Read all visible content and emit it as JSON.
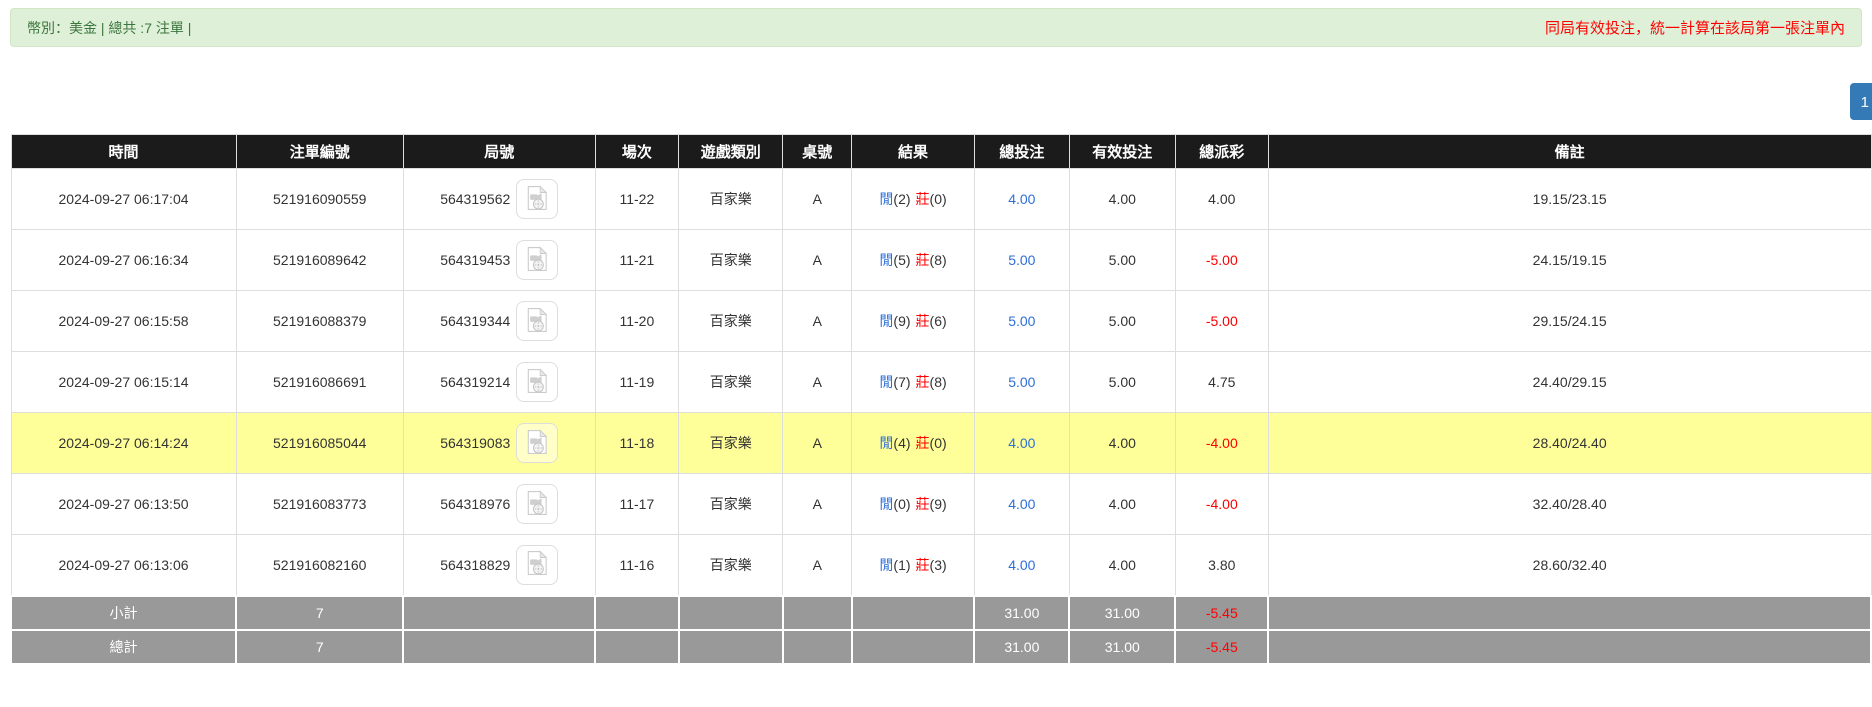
{
  "header_bar": {
    "left_text": "幣別：美金 | 總共 :7 注單 |",
    "right_text": "同局有效投注，統一計算在該局第一張注單內"
  },
  "pagination": {
    "page": "1"
  },
  "colors": {
    "alert_bg": "#dff0d8",
    "alert_text": "#3c763d",
    "note_red": "#ff0000",
    "link_blue": "#2e6fd8",
    "pagination_blue": "#337ab7",
    "header_black": "#1b1b1b",
    "highlight_yellow": "#ffff99",
    "summary_gray": "#999999"
  },
  "icons": {
    "game_video": "video-record-icon"
  },
  "table": {
    "columns": [
      "時間",
      "注單編號",
      "局號",
      "場次",
      "遊戲類別",
      "桌號",
      "結果",
      "總投注",
      "有效投注",
      "總派彩",
      "備註"
    ],
    "result_labels": {
      "player": "閒",
      "banker": "莊"
    },
    "rows": [
      {
        "time": "2024-09-27 06:17:04",
        "bet_no": "521916090559",
        "game_no": "564319562",
        "session": "11-22",
        "game_type": "百家樂",
        "table_no": "A",
        "result_player": "(2)",
        "result_banker": "(0)",
        "total_bet": "4.00",
        "valid_bet": "4.00",
        "payout": "4.00",
        "remark": "19.15/23.15",
        "highlighted": false
      },
      {
        "time": "2024-09-27 06:16:34",
        "bet_no": "521916089642",
        "game_no": "564319453",
        "session": "11-21",
        "game_type": "百家樂",
        "table_no": "A",
        "result_player": "(5)",
        "result_banker": "(8)",
        "total_bet": "5.00",
        "valid_bet": "5.00",
        "payout": "-5.00",
        "remark": "24.15/19.15",
        "highlighted": false
      },
      {
        "time": "2024-09-27 06:15:58",
        "bet_no": "521916088379",
        "game_no": "564319344",
        "session": "11-20",
        "game_type": "百家樂",
        "table_no": "A",
        "result_player": "(9)",
        "result_banker": "(6)",
        "total_bet": "5.00",
        "valid_bet": "5.00",
        "payout": "-5.00",
        "remark": "29.15/24.15",
        "highlighted": false
      },
      {
        "time": "2024-09-27 06:15:14",
        "bet_no": "521916086691",
        "game_no": "564319214",
        "session": "11-19",
        "game_type": "百家樂",
        "table_no": "A",
        "result_player": "(7)",
        "result_banker": "(8)",
        "total_bet": "5.00",
        "valid_bet": "5.00",
        "payout": "4.75",
        "remark": "24.40/29.15",
        "highlighted": false
      },
      {
        "time": "2024-09-27 06:14:24",
        "bet_no": "521916085044",
        "game_no": "564319083",
        "session": "11-18",
        "game_type": "百家樂",
        "table_no": "A",
        "result_player": "(4)",
        "result_banker": "(0)",
        "total_bet": "4.00",
        "valid_bet": "4.00",
        "payout": "-4.00",
        "remark": "28.40/24.40",
        "highlighted": true
      },
      {
        "time": "2024-09-27 06:13:50",
        "bet_no": "521916083773",
        "game_no": "564318976",
        "session": "11-17",
        "game_type": "百家樂",
        "table_no": "A",
        "result_player": "(0)",
        "result_banker": "(9)",
        "total_bet": "4.00",
        "valid_bet": "4.00",
        "payout": "-4.00",
        "remark": "32.40/28.40",
        "highlighted": false
      },
      {
        "time": "2024-09-27 06:13:06",
        "bet_no": "521916082160",
        "game_no": "564318829",
        "session": "11-16",
        "game_type": "百家樂",
        "table_no": "A",
        "result_player": "(1)",
        "result_banker": "(3)",
        "total_bet": "4.00",
        "valid_bet": "4.00",
        "payout": "3.80",
        "remark": "28.60/32.40",
        "highlighted": false
      }
    ],
    "summary": {
      "subtotal": {
        "label": "小計",
        "count": "7",
        "total_bet": "31.00",
        "valid_bet": "31.00",
        "payout": "-5.45"
      },
      "total": {
        "label": "總計",
        "count": "7",
        "total_bet": "31.00",
        "valid_bet": "31.00",
        "payout": "-5.45"
      }
    }
  }
}
